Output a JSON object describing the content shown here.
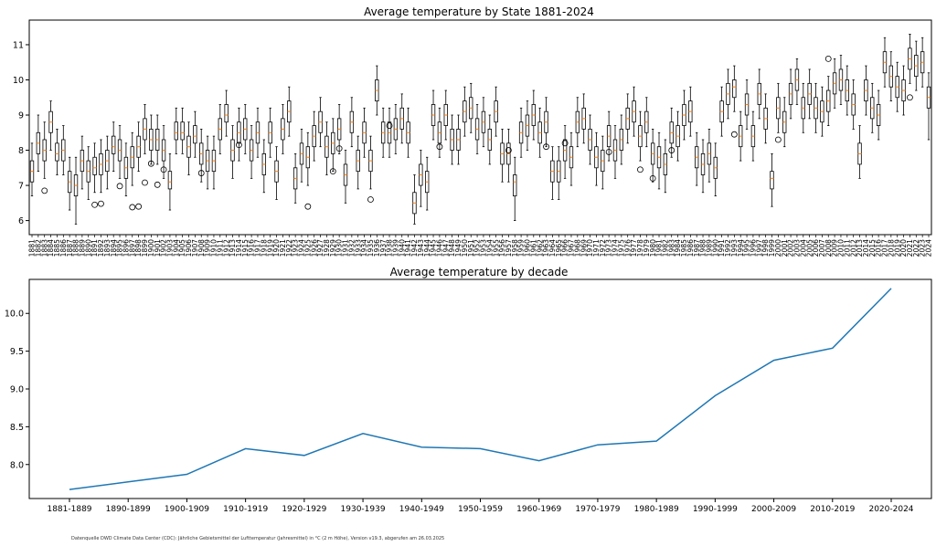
{
  "chart_data": [
    {
      "type": "box",
      "title": "Average temperature by State 1881-2024",
      "xlabel": "",
      "ylabel": "",
      "ylim": [
        5.6,
        11.7
      ],
      "yticks": [
        6,
        7,
        8,
        9,
        10,
        11
      ],
      "x_start": 1881,
      "x_end": 2024,
      "categories": [
        "1881",
        "1882",
        "1883",
        "1884",
        "1885",
        "1886",
        "1887",
        "1888",
        "1889",
        "1890",
        "1891",
        "1892",
        "1893",
        "1894",
        "1895",
        "1896",
        "1897",
        "1898",
        "1899",
        "1900",
        "1901",
        "1902",
        "1903",
        "1904",
        "1905",
        "1906",
        "1907",
        "1908",
        "1909",
        "1910",
        "1911",
        "1912",
        "1913",
        "1914",
        "1915",
        "1916",
        "1917",
        "1918",
        "1919",
        "1920",
        "1921",
        "1922",
        "1923",
        "1924",
        "1925",
        "1926",
        "1927",
        "1928",
        "1929",
        "1930",
        "1931",
        "1932",
        "1933",
        "1934",
        "1935",
        "1936",
        "1937",
        "1938",
        "1939",
        "1940",
        "1941",
        "1942",
        "1943",
        "1944",
        "1945",
        "1946",
        "1947",
        "1948",
        "1949",
        "1950",
        "1951",
        "1952",
        "1953",
        "1954",
        "1955",
        "1956",
        "1957",
        "1958",
        "1959",
        "1960",
        "1961",
        "1962",
        "1963",
        "1964",
        "1965",
        "1966",
        "1967",
        "1968",
        "1969",
        "1970",
        "1971",
        "1972",
        "1973",
        "1974",
        "1975",
        "1976",
        "1977",
        "1978",
        "1979",
        "1980",
        "1981",
        "1982",
        "1983",
        "1984",
        "1985",
        "1986",
        "1987",
        "1988",
        "1989",
        "1990",
        "1991",
        "1992",
        "1993",
        "1994",
        "1995",
        "1996",
        "1997",
        "1998",
        "1999",
        "2000",
        "2001",
        "2002",
        "2003",
        "2004",
        "2005",
        "2006",
        "2007",
        "2008",
        "2009",
        "2010",
        "2011",
        "2012",
        "2013",
        "2014",
        "2015",
        "2016",
        "2017",
        "2018",
        "2019",
        "2020",
        "2021",
        "2022",
        "2023",
        "2024"
      ],
      "medians": [
        7.4,
        8.2,
        8.0,
        8.8,
        7.9,
        8.0,
        7.1,
        7.0,
        7.7,
        7.4,
        7.5,
        7.6,
        7.7,
        8.1,
        8.0,
        7.5,
        7.8,
        8.1,
        8.6,
        8.3,
        8.3,
        8.0,
        7.1,
        8.5,
        8.5,
        8.1,
        8.4,
        7.9,
        7.7,
        7.7,
        8.6,
        9.0,
        8.0,
        8.5,
        8.6,
        8.0,
        8.5,
        7.6,
        8.5,
        7.4,
        8.6,
        9.1,
        7.2,
        7.9,
        7.8,
        8.4,
        8.8,
        8.1,
        8.2,
        8.6,
        7.3,
        8.8,
        7.7,
        8.5,
        7.7,
        9.7,
        8.5,
        8.5,
        8.6,
        8.9,
        8.5,
        6.5,
        7.3,
        7.1,
        9.0,
        8.5,
        9.0,
        8.3,
        8.3,
        9.1,
        9.2,
        8.6,
        8.8,
        8.3,
        9.1,
        7.9,
        7.9,
        7.1,
        8.5,
        8.7,
        9.0,
        8.5,
        8.8,
        7.4,
        7.4,
        8.0,
        7.8,
        8.8,
        8.9,
        8.3,
        7.8,
        7.7,
        8.4,
        8.0,
        8.3,
        8.9,
        9.1,
        8.4,
        8.8,
        7.9,
        7.8,
        7.6,
        8.5,
        8.4,
        9.0,
        9.1,
        7.8,
        7.6,
        7.9,
        7.5,
        9.1,
        9.6,
        9.8,
        8.4,
        9.3,
        8.4,
        9.6,
        8.9,
        7.2,
        9.2,
        8.8,
        9.6,
        10.0,
        9.2,
        9.6,
        9.2,
        9.1,
        9.4,
        9.9,
        10.0,
        9.7,
        9.3,
        7.9,
        9.7,
        9.2,
        9.0,
        10.5,
        10.1,
        9.8,
        9.7,
        10.6,
        10.4,
        10.5,
        9.5,
        10.4,
        10.7,
        11.1
      ],
      "q1": [
        7.1,
        7.9,
        7.7,
        8.5,
        7.7,
        7.7,
        6.8,
        6.7,
        7.4,
        7.1,
        7.3,
        7.3,
        7.4,
        7.9,
        7.7,
        7.2,
        7.5,
        7.8,
        8.3,
        8.0,
        8.0,
        7.7,
        6.9,
        8.3,
        8.3,
        7.8,
        8.2,
        7.6,
        7.4,
        7.4,
        8.3,
        8.8,
        7.7,
        8.2,
        8.3,
        7.7,
        8.2,
        7.3,
        8.2,
        7.1,
        8.3,
        8.8,
        6.9,
        7.6,
        7.5,
        8.1,
        8.5,
        7.8,
        7.9,
        8.3,
        7.0,
        8.5,
        7.4,
        8.2,
        7.4,
        9.4,
        8.2,
        8.2,
        8.3,
        8.6,
        8.2,
        6.2,
        7.0,
        6.8,
        8.7,
        8.2,
        8.7,
        8.0,
        8.0,
        8.8,
        8.9,
        8.3,
        8.5,
        8.0,
        8.8,
        7.6,
        7.6,
        6.7,
        8.2,
        8.4,
        8.7,
        8.2,
        8.5,
        7.1,
        7.1,
        7.7,
        7.5,
        8.5,
        8.6,
        8.0,
        7.5,
        7.4,
        8.1,
        7.7,
        8.0,
        8.6,
        8.8,
        8.1,
        8.5,
        7.6,
        7.5,
        7.3,
        8.2,
        8.1,
        8.7,
        8.8,
        7.5,
        7.3,
        7.6,
        7.2,
        8.8,
        9.3,
        9.5,
        8.1,
        9.0,
        8.1,
        9.3,
        8.6,
        6.9,
        8.9,
        8.5,
        9.3,
        9.7,
        8.9,
        9.3,
        8.9,
        8.8,
        9.1,
        9.6,
        9.7,
        9.4,
        9.0,
        7.6,
        9.4,
        8.9,
        8.7,
        10.2,
        9.8,
        9.5,
        9.4,
        10.3,
        10.1,
        10.2,
        9.2,
        10.1,
        10.4,
        10.8
      ],
      "q3": [
        7.7,
        8.5,
        8.3,
        9.1,
        8.2,
        8.3,
        7.4,
        7.3,
        8.0,
        7.7,
        7.8,
        7.9,
        8.0,
        8.4,
        8.3,
        7.8,
        8.1,
        8.4,
        8.9,
        8.6,
        8.6,
        8.3,
        7.4,
        8.8,
        8.8,
        8.4,
        8.7,
        8.2,
        8.0,
        8.0,
        8.9,
        9.3,
        8.3,
        8.8,
        8.9,
        8.3,
        8.8,
        7.9,
        8.8,
        7.7,
        8.9,
        9.4,
        7.5,
        8.2,
        8.1,
        8.7,
        9.1,
        8.4,
        8.5,
        8.9,
        7.6,
        9.1,
        8.0,
        8.8,
        8.0,
        10.0,
        8.8,
        8.8,
        8.9,
        9.2,
        8.8,
        6.8,
        7.6,
        7.4,
        9.3,
        8.8,
        9.3,
        8.6,
        8.6,
        9.4,
        9.5,
        8.9,
        9.1,
        8.6,
        9.4,
        8.2,
        8.2,
        7.3,
        8.8,
        9.0,
        9.3,
        8.8,
        9.1,
        7.7,
        7.7,
        8.3,
        8.1,
        9.1,
        9.2,
        8.6,
        8.1,
        8.0,
        8.7,
        8.3,
        8.6,
        9.2,
        9.4,
        8.7,
        9.1,
        8.2,
        8.1,
        7.9,
        8.8,
        8.7,
        9.3,
        9.4,
        8.1,
        7.9,
        8.2,
        7.8,
        9.4,
        9.9,
        10.0,
        8.7,
        9.6,
        8.7,
        9.9,
        9.2,
        7.4,
        9.5,
        9.1,
        9.9,
        10.3,
        9.5,
        9.9,
        9.5,
        9.4,
        9.7,
        10.2,
        10.3,
        10.0,
        9.6,
        8.2,
        10.0,
        9.5,
        9.3,
        10.8,
        10.4,
        10.1,
        10.0,
        10.9,
        10.7,
        10.8,
        9.8,
        10.7,
        11.0,
        11.3
      ],
      "whisker_low": [
        6.7,
        7.4,
        7.2,
        8.0,
        7.3,
        7.3,
        6.3,
        5.9,
        6.9,
        6.6,
        6.8,
        6.8,
        6.9,
        7.4,
        7.2,
        6.7,
        7.0,
        7.4,
        7.9,
        7.6,
        7.6,
        7.2,
        6.3,
        7.9,
        7.9,
        7.3,
        7.8,
        7.1,
        6.9,
        6.9,
        7.9,
        8.4,
        7.2,
        7.7,
        7.9,
        7.2,
        7.8,
        6.8,
        7.8,
        6.6,
        7.9,
        8.4,
        6.5,
        7.1,
        7.0,
        7.7,
        8.1,
        7.3,
        7.4,
        7.9,
        6.5,
        8.1,
        6.9,
        7.8,
        6.9,
        9.0,
        7.8,
        7.8,
        7.9,
        8.2,
        7.8,
        5.9,
        6.4,
        6.3,
        8.3,
        7.8,
        8.3,
        7.6,
        7.6,
        8.4,
        8.5,
        7.9,
        8.1,
        7.6,
        8.4,
        7.1,
        7.1,
        6.0,
        7.8,
        8.0,
        8.3,
        7.8,
        8.1,
        6.6,
        6.6,
        7.2,
        7.0,
        8.1,
        8.2,
        7.6,
        7.0,
        6.9,
        7.7,
        7.2,
        7.6,
        8.2,
        8.4,
        7.7,
        8.1,
        7.1,
        6.9,
        6.8,
        7.8,
        7.7,
        8.3,
        8.4,
        7.0,
        6.8,
        7.1,
        6.7,
        8.4,
        8.9,
        9.1,
        7.7,
        8.6,
        7.7,
        8.9,
        8.2,
        6.4,
        8.5,
        8.1,
        8.9,
        9.3,
        8.5,
        8.9,
        8.5,
        8.4,
        8.7,
        9.2,
        9.3,
        9.0,
        8.6,
        7.2,
        9.0,
        8.5,
        8.3,
        9.8,
        9.4,
        9.1,
        9.0,
        9.9,
        9.7,
        9.8,
        8.3,
        9.7,
        10.0,
        10.4
      ],
      "whisker_high": [
        8.2,
        9.0,
        8.8,
        9.4,
        8.6,
        8.7,
        7.8,
        7.8,
        8.4,
        8.1,
        8.2,
        8.3,
        8.4,
        8.8,
        8.7,
        8.2,
        8.5,
        8.8,
        9.3,
        9.0,
        9.0,
        8.7,
        7.9,
        9.2,
        9.2,
        8.8,
        9.1,
        8.6,
        8.4,
        8.4,
        9.3,
        9.7,
        8.7,
        9.2,
        9.3,
        8.7,
        9.2,
        8.3,
        9.2,
        8.1,
        9.3,
        9.8,
        7.9,
        8.6,
        8.5,
        9.1,
        9.5,
        8.8,
        8.9,
        9.3,
        8.0,
        9.5,
        8.4,
        9.2,
        8.4,
        10.4,
        9.2,
        9.2,
        9.3,
        9.6,
        9.2,
        7.3,
        8.0,
        7.8,
        9.7,
        9.2,
        9.7,
        9.0,
        9.0,
        9.8,
        9.9,
        9.3,
        9.5,
        9.0,
        9.8,
        8.6,
        8.6,
        7.8,
        9.2,
        9.4,
        9.7,
        9.2,
        9.5,
        8.1,
        8.1,
        8.7,
        8.5,
        9.5,
        9.6,
        9.0,
        8.5,
        8.4,
        9.1,
        8.7,
        9.0,
        9.6,
        9.8,
        9.1,
        9.5,
        8.6,
        8.5,
        8.3,
        9.2,
        9.1,
        9.7,
        9.8,
        8.5,
        8.3,
        8.6,
        8.2,
        9.8,
        10.3,
        10.4,
        9.1,
        10.0,
        9.1,
        10.3,
        9.6,
        7.9,
        9.9,
        9.5,
        10.3,
        10.6,
        9.9,
        10.3,
        9.9,
        9.8,
        10.1,
        10.6,
        10.7,
        10.4,
        10.0,
        8.7,
        10.4,
        9.9,
        9.7,
        11.2,
        10.8,
        10.5,
        10.4,
        11.3,
        11.1,
        11.2,
        10.2,
        11.1,
        11.4,
        11.6
      ],
      "outliers": [
        {
          "x": "1883",
          "y": 6.85
        },
        {
          "x": "1891",
          "y": 6.45
        },
        {
          "x": "1892",
          "y": 6.48
        },
        {
          "x": "1895",
          "y": 6.98
        },
        {
          "x": "1897",
          "y": 6.38
        },
        {
          "x": "1898",
          "y": 6.4
        },
        {
          "x": "1899",
          "y": 7.08
        },
        {
          "x": "1900",
          "y": 7.62
        },
        {
          "x": "1901",
          "y": 7.02
        },
        {
          "x": "1902",
          "y": 7.45
        },
        {
          "x": "1908",
          "y": 7.35
        },
        {
          "x": "1914",
          "y": 8.15
        },
        {
          "x": "1925",
          "y": 6.4
        },
        {
          "x": "1929",
          "y": 7.4
        },
        {
          "x": "1930",
          "y": 8.05
        },
        {
          "x": "1935",
          "y": 6.6
        },
        {
          "x": "1938",
          "y": 8.7
        },
        {
          "x": "1946",
          "y": 8.1
        },
        {
          "x": "1957",
          "y": 8.0
        },
        {
          "x": "1963",
          "y": 8.1
        },
        {
          "x": "1966",
          "y": 8.2
        },
        {
          "x": "1973",
          "y": 7.95
        },
        {
          "x": "1978",
          "y": 7.45
        },
        {
          "x": "1980",
          "y": 7.2
        },
        {
          "x": "1983",
          "y": 8.0
        },
        {
          "x": "1993",
          "y": 8.45
        },
        {
          "x": "2000",
          "y": 8.3
        },
        {
          "x": "2008",
          "y": 10.6
        },
        {
          "x": "2021",
          "y": 9.5
        }
      ]
    },
    {
      "type": "line",
      "title": "Average temperature by decade",
      "xlabel": "",
      "ylabel": "",
      "ylim": [
        7.55,
        10.45
      ],
      "yticks": [
        8.0,
        8.5,
        9.0,
        9.5,
        10.0
      ],
      "ytick_labels": [
        "8.0",
        "8.5",
        "9.0",
        "9.5",
        "10.0"
      ],
      "categories": [
        "1881-1889",
        "1890-1899",
        "1900-1909",
        "1910-1919",
        "1920-1929",
        "1930-1939",
        "1940-1949",
        "1950-1959",
        "1960-1969",
        "1970-1979",
        "1980-1989",
        "1990-1999",
        "2000-2009",
        "2010-2019",
        "2020-2024"
      ],
      "values": [
        7.67,
        7.77,
        7.87,
        8.21,
        8.12,
        8.41,
        8.23,
        8.21,
        8.05,
        8.26,
        8.31,
        8.91,
        9.38,
        9.54,
        10.33
      ],
      "color": "#1f77b4"
    }
  ],
  "source_note": "Datenquelle DWD Climate Data Center (CDC): Jährliche Gebietsmittel der Lufttemperatur (Jahresmittel) in °C (2 m Höhe), Version v19.3, abgerufen am 26.03.2025"
}
